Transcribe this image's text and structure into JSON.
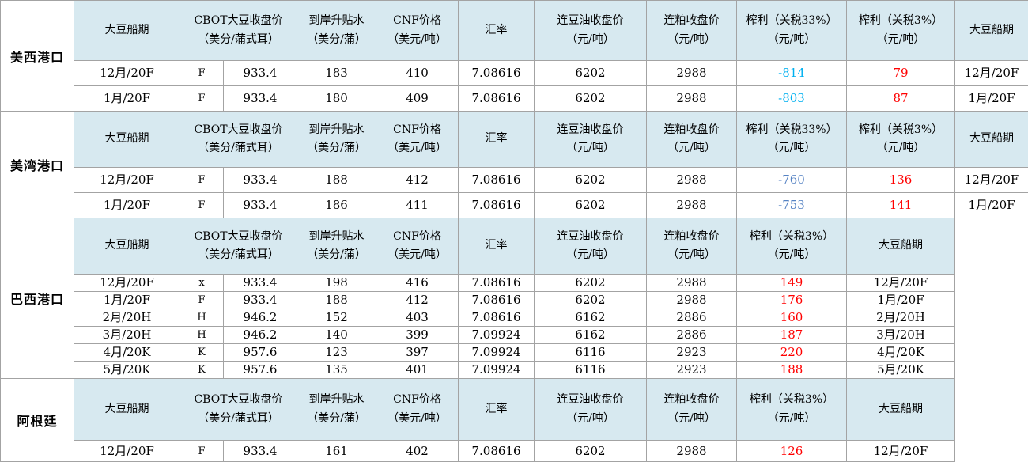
{
  "colors": {
    "header_bg": "#d7e9f0",
    "border": "#a3a3a3",
    "margin33_us_west": "#00b0f0",
    "margin33_us_gulf": "#5582c3",
    "margin3_red": "#ff0000"
  },
  "headers": {
    "ship_date": "大豆船期",
    "cbot": "CBOT大豆收盘价\n（美分/蒲式耳）",
    "premium": "到岸升贴水\n（美分/蒲）",
    "cnf": "CNF价格\n（美元/吨）",
    "fx": "汇率",
    "oil": "连豆油收盘价\n（元/吨）",
    "meal": "连粕收盘价\n（元/吨）",
    "margin33": "榨利（关税33%）\n（元/吨）",
    "margin3": "榨利（关税3%）\n（元/吨）",
    "ship_date2": "大豆船期"
  },
  "sections": [
    {
      "port": "美西港口",
      "has_margin33": true,
      "margin33_color": "#00b0f0",
      "rows": [
        {
          "month": "12月/20F",
          "code": "F",
          "cbot": "933.4",
          "premium": "183",
          "cnf": "410",
          "fx": "7.08616",
          "oil": "6202",
          "meal": "2988",
          "margin33": "-814",
          "margin3": "79"
        },
        {
          "month": "1月/20F",
          "code": "F",
          "cbot": "933.4",
          "premium": "180",
          "cnf": "409",
          "fx": "7.08616",
          "oil": "6202",
          "meal": "2988",
          "margin33": "-803",
          "margin3": "87"
        }
      ]
    },
    {
      "port": "美湾港口",
      "has_margin33": true,
      "margin33_color": "#5582c3",
      "rows": [
        {
          "month": "12月/20F",
          "code": "F",
          "cbot": "933.4",
          "premium": "188",
          "cnf": "412",
          "fx": "7.08616",
          "oil": "6202",
          "meal": "2988",
          "margin33": "-760",
          "margin3": "136"
        },
        {
          "month": "1月/20F",
          "code": "F",
          "cbot": "933.4",
          "premium": "186",
          "cnf": "411",
          "fx": "7.08616",
          "oil": "6202",
          "meal": "2988",
          "margin33": "-753",
          "margin3": "141"
        }
      ]
    },
    {
      "port": "巴西港口",
      "has_margin33": false,
      "rows": [
        {
          "month": "12月/20F",
          "code": "x",
          "cbot": "933.4",
          "premium": "198",
          "cnf": "416",
          "fx": "7.08616",
          "oil": "6202",
          "meal": "2988",
          "margin3": "149"
        },
        {
          "month": "1月/20F",
          "code": "F",
          "cbot": "933.4",
          "premium": "188",
          "cnf": "412",
          "fx": "7.08616",
          "oil": "6202",
          "meal": "2988",
          "margin3": "176"
        },
        {
          "month": "2月/20H",
          "code": "H",
          "cbot": "946.2",
          "premium": "152",
          "cnf": "403",
          "fx": "7.08616",
          "oil": "6162",
          "meal": "2886",
          "margin3": "160"
        },
        {
          "month": "3月/20H",
          "code": "H",
          "cbot": "946.2",
          "premium": "140",
          "cnf": "399",
          "fx": "7.09924",
          "oil": "6162",
          "meal": "2886",
          "margin3": "187"
        },
        {
          "month": "4月/20K",
          "code": "K",
          "cbot": "957.6",
          "premium": "123",
          "cnf": "397",
          "fx": "7.09924",
          "oil": "6116",
          "meal": "2923",
          "margin3": "220"
        },
        {
          "month": "5月/20K",
          "code": "K",
          "cbot": "957.6",
          "premium": "135",
          "cnf": "401",
          "fx": "7.09924",
          "oil": "6116",
          "meal": "2923",
          "margin3": "188"
        }
      ]
    },
    {
      "port": "阿根廷",
      "has_margin33": false,
      "rows": [
        {
          "month": "12月/20F",
          "code": "F",
          "cbot": "933.4",
          "premium": "161",
          "cnf": "402",
          "fx": "7.08616",
          "oil": "6202",
          "meal": "2988",
          "margin3": "126"
        }
      ]
    }
  ]
}
